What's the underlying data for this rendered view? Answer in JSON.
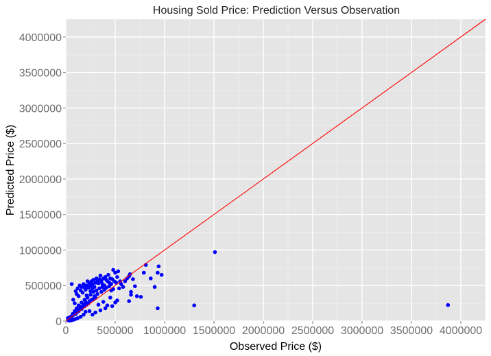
{
  "chart_data": {
    "type": "scatter",
    "title": "Housing Sold Price: Prediction Versus Observation",
    "xlabel": "Observed Price ($)",
    "ylabel": "Predicted Price ($)",
    "xlim": [
      0,
      4250000
    ],
    "ylim": [
      0,
      4250000
    ],
    "x_ticks": [
      0,
      500000,
      1000000,
      1500000,
      2000000,
      2500000,
      3000000,
      3500000,
      4000000
    ],
    "y_ticks": [
      0,
      500000,
      1000000,
      1500000,
      2000000,
      2500000,
      3000000,
      3500000,
      4000000
    ],
    "x_tick_labels": [
      "0",
      "500000",
      "1000000",
      "1500000",
      "2000000",
      "2500000",
      "3000000",
      "3500000",
      "4000000"
    ],
    "y_tick_labels": [
      "0",
      "500000",
      "1000000",
      "1500000",
      "2000000",
      "2500000",
      "3000000",
      "3500000",
      "4000000"
    ],
    "grid": true,
    "background_color": "#e5e5e5",
    "grid_color": "#ffffff",
    "point_color": "#0000ff",
    "reference_line": {
      "from": [
        0,
        0
      ],
      "to": [
        4250000,
        4250000
      ],
      "color": "#ff0000"
    },
    "points": [
      [
        60000,
        520000
      ],
      [
        75000,
        300000
      ],
      [
        90000,
        250000
      ],
      [
        100000,
        420000
      ],
      [
        110000,
        380000
      ],
      [
        120000,
        460000
      ],
      [
        130000,
        350000
      ],
      [
        140000,
        500000
      ],
      [
        150000,
        430000
      ],
      [
        160000,
        480000
      ],
      [
        170000,
        400000
      ],
      [
        180000,
        520000
      ],
      [
        190000,
        470000
      ],
      [
        200000,
        440000
      ],
      [
        210000,
        500000
      ],
      [
        220000,
        560000
      ],
      [
        230000,
        470000
      ],
      [
        240000,
        530000
      ],
      [
        250000,
        500000
      ],
      [
        260000,
        560000
      ],
      [
        270000,
        520000
      ],
      [
        280000,
        580000
      ],
      [
        290000,
        480000
      ],
      [
        300000,
        540000
      ],
      [
        310000,
        600000
      ],
      [
        320000,
        560000
      ],
      [
        330000,
        530000
      ],
      [
        340000,
        590000
      ],
      [
        350000,
        640000
      ],
      [
        360000,
        560000
      ],
      [
        370000,
        520000
      ],
      [
        380000,
        600000
      ],
      [
        390000,
        500000
      ],
      [
        400000,
        620000
      ],
      [
        410000,
        580000
      ],
      [
        420000,
        560000
      ],
      [
        430000,
        650000
      ],
      [
        440000,
        540000
      ],
      [
        450000,
        600000
      ],
      [
        460000,
        520000
      ],
      [
        470000,
        590000
      ],
      [
        480000,
        720000
      ],
      [
        490000,
        560000
      ],
      [
        500000,
        680000
      ],
      [
        510000,
        540000
      ],
      [
        520000,
        620000
      ],
      [
        530000,
        700000
      ],
      [
        540000,
        460000
      ],
      [
        550000,
        560000
      ],
      [
        560000,
        520000
      ],
      [
        580000,
        480000
      ],
      [
        600000,
        560000
      ],
      [
        620000,
        600000
      ],
      [
        640000,
        630000
      ],
      [
        650000,
        660000
      ],
      [
        660000,
        410000
      ],
      [
        680000,
        590000
      ],
      [
        700000,
        490000
      ],
      [
        720000,
        350000
      ],
      [
        760000,
        340000
      ],
      [
        790000,
        680000
      ],
      [
        810000,
        790000
      ],
      [
        860000,
        600000
      ],
      [
        900000,
        480000
      ],
      [
        930000,
        680000
      ],
      [
        940000,
        770000
      ],
      [
        970000,
        650000
      ],
      [
        930000,
        180000
      ],
      [
        1300000,
        220000
      ],
      [
        1510000,
        970000
      ],
      [
        3870000,
        225000
      ],
      [
        450000,
        330000
      ],
      [
        470000,
        210000
      ],
      [
        500000,
        260000
      ],
      [
        520000,
        290000
      ],
      [
        350000,
        150000
      ],
      [
        300000,
        120000
      ],
      [
        270000,
        90000
      ],
      [
        240000,
        140000
      ],
      [
        640000,
        280000
      ],
      [
        660000,
        370000
      ],
      [
        400000,
        180000
      ],
      [
        420000,
        220000
      ],
      [
        380000,
        270000
      ],
      [
        330000,
        230000
      ],
      [
        200000,
        130000
      ],
      [
        180000,
        90000
      ],
      [
        150000,
        60000
      ],
      [
        120000,
        40000
      ],
      [
        100000,
        30000
      ],
      [
        80000,
        20000
      ],
      [
        60000,
        10000
      ],
      [
        40000,
        5000
      ],
      [
        30000,
        30000
      ],
      [
        20000,
        40000
      ],
      [
        50000,
        60000
      ],
      [
        70000,
        100000
      ],
      [
        90000,
        140000
      ],
      [
        110000,
        180000
      ],
      [
        130000,
        220000
      ],
      [
        160000,
        260000
      ],
      [
        190000,
        300000
      ],
      [
        220000,
        330000
      ],
      [
        250000,
        370000
      ],
      [
        280000,
        410000
      ],
      [
        310000,
        430000
      ],
      [
        340000,
        460000
      ],
      [
        370000,
        480000
      ],
      [
        260000,
        300000
      ],
      [
        230000,
        250000
      ],
      [
        210000,
        230000
      ],
      [
        170000,
        190000
      ],
      [
        140000,
        160000
      ],
      [
        110000,
        120000
      ],
      [
        80000,
        90000
      ],
      [
        60000,
        70000
      ],
      [
        40000,
        50000
      ],
      [
        300000,
        330000
      ],
      [
        320000,
        380000
      ],
      [
        280000,
        310000
      ],
      [
        240000,
        280000
      ],
      [
        190000,
        210000
      ],
      [
        160000,
        170000
      ],
      [
        130000,
        140000
      ],
      [
        100000,
        100000
      ],
      [
        210000,
        360000
      ],
      [
        250000,
        420000
      ],
      [
        270000,
        460000
      ],
      [
        290000,
        350000
      ],
      [
        360000,
        410000
      ],
      [
        390000,
        440000
      ],
      [
        410000,
        470000
      ],
      [
        440000,
        490000
      ],
      [
        460000,
        430000
      ],
      [
        480000,
        450000
      ],
      [
        200000,
        270000
      ],
      [
        180000,
        230000
      ],
      [
        150000,
        200000
      ],
      [
        120000,
        170000
      ],
      [
        90000,
        110000
      ],
      [
        70000,
        80000
      ],
      [
        55000,
        45000
      ],
      [
        45000,
        25000
      ],
      [
        35000,
        15000
      ],
      [
        25000,
        8000
      ]
    ]
  }
}
